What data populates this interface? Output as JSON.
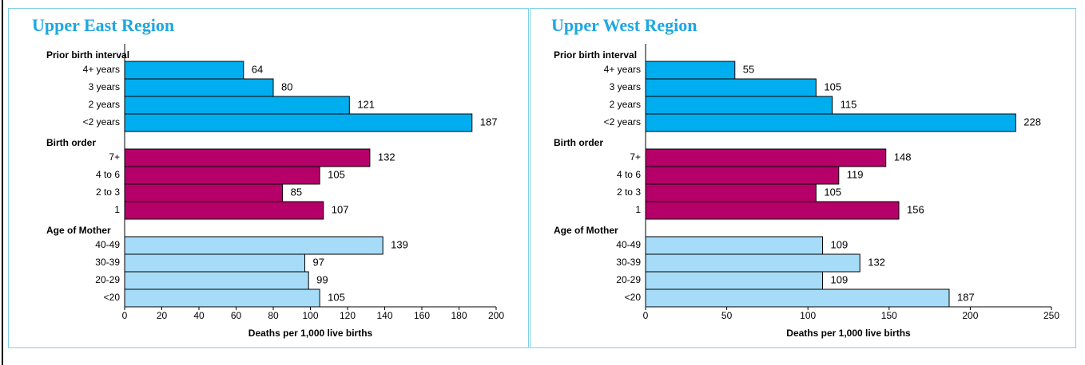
{
  "chart_data": [
    {
      "type": "bar",
      "orientation": "horizontal",
      "title": "Upper East Region",
      "xlabel": "Deaths per 1,000 live births",
      "xlim": [
        0,
        200
      ],
      "xticks": [
        0,
        20,
        40,
        60,
        80,
        100,
        120,
        140,
        160,
        180,
        200
      ],
      "groups": [
        {
          "name": "Prior birth interval",
          "color": "#00aeef",
          "categories": [
            "4+ years",
            "3 years",
            "2 years",
            "<2 years"
          ],
          "values": [
            64,
            80,
            121,
            187
          ]
        },
        {
          "name": "Birth order",
          "color": "#b5006a",
          "categories": [
            "7+",
            "4 to 6",
            "2 to 3",
            "1"
          ],
          "values": [
            132,
            105,
            85,
            107
          ]
        },
        {
          "name": "Age of Mother",
          "color": "#a6dcf8",
          "categories": [
            "40-49",
            "30-39",
            "20-29",
            "<20"
          ],
          "values": [
            139,
            97,
            99,
            105
          ]
        }
      ]
    },
    {
      "type": "bar",
      "orientation": "horizontal",
      "title": "Upper West Region",
      "xlabel": "Deaths per 1,000 live births",
      "xlim": [
        0,
        250
      ],
      "xticks": [
        0,
        50,
        100,
        150,
        200,
        250
      ],
      "groups": [
        {
          "name": "Prior birth interval",
          "color": "#00aeef",
          "categories": [
            "4+ years",
            "3 years",
            "2 years",
            "<2 years"
          ],
          "values": [
            55,
            105,
            115,
            228
          ]
        },
        {
          "name": "Birth order",
          "color": "#b5006a",
          "categories": [
            "7+",
            "4 to 6",
            "2 to 3",
            "1"
          ],
          "values": [
            148,
            119,
            105,
            156
          ]
        },
        {
          "name": "Age of Mother",
          "color": "#a6dcf8",
          "categories": [
            "40-49",
            "30-39",
            "20-29",
            "<20"
          ],
          "values": [
            109,
            132,
            109,
            187
          ]
        }
      ]
    }
  ]
}
